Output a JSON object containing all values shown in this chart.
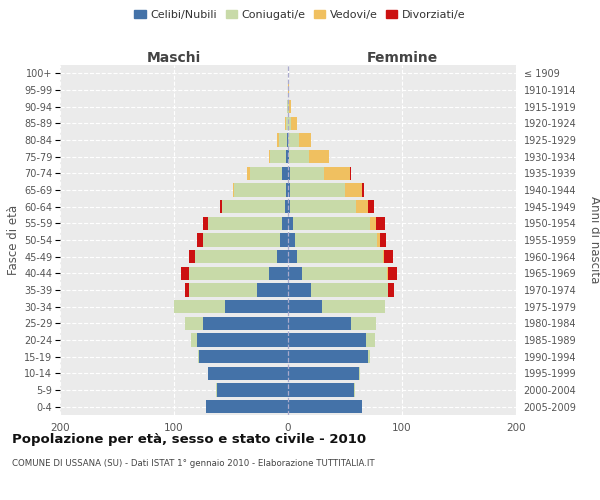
{
  "age_groups": [
    "0-4",
    "5-9",
    "10-14",
    "15-19",
    "20-24",
    "25-29",
    "30-34",
    "35-39",
    "40-44",
    "45-49",
    "50-54",
    "55-59",
    "60-64",
    "65-69",
    "70-74",
    "75-79",
    "80-84",
    "85-89",
    "90-94",
    "95-99",
    "100+"
  ],
  "birth_years": [
    "2005-2009",
    "2000-2004",
    "1995-1999",
    "1990-1994",
    "1985-1989",
    "1980-1984",
    "1975-1979",
    "1970-1974",
    "1965-1969",
    "1960-1964",
    "1955-1959",
    "1950-1954",
    "1945-1949",
    "1940-1944",
    "1935-1939",
    "1930-1934",
    "1925-1929",
    "1920-1924",
    "1915-1919",
    "1910-1914",
    "≤ 1909"
  ],
  "males": {
    "celibi": [
      72,
      62,
      70,
      78,
      80,
      75,
      55,
      27,
      17,
      10,
      7,
      5,
      3,
      2,
      5,
      2,
      1,
      0,
      0,
      0,
      0
    ],
    "coniugati": [
      0,
      1,
      0,
      1,
      5,
      15,
      45,
      60,
      70,
      72,
      68,
      65,
      55,
      45,
      28,
      14,
      7,
      2,
      1,
      0,
      0
    ],
    "vedovi": [
      0,
      0,
      0,
      0,
      0,
      0,
      0,
      0,
      0,
      0,
      0,
      0,
      0,
      1,
      3,
      1,
      2,
      1,
      0,
      0,
      0
    ],
    "divorziati": [
      0,
      0,
      0,
      0,
      0,
      0,
      0,
      3,
      7,
      5,
      5,
      5,
      2,
      0,
      0,
      0,
      0,
      0,
      0,
      0,
      0
    ]
  },
  "females": {
    "nubili": [
      65,
      58,
      62,
      70,
      68,
      55,
      30,
      20,
      12,
      8,
      6,
      4,
      2,
      2,
      2,
      1,
      0,
      0,
      0,
      0,
      0
    ],
    "coniugate": [
      0,
      1,
      1,
      2,
      8,
      22,
      55,
      68,
      75,
      75,
      72,
      68,
      58,
      48,
      30,
      17,
      10,
      3,
      1,
      0,
      0
    ],
    "vedove": [
      0,
      0,
      0,
      0,
      0,
      0,
      0,
      0,
      1,
      1,
      3,
      5,
      10,
      15,
      22,
      18,
      10,
      5,
      2,
      1,
      0
    ],
    "divorziate": [
      0,
      0,
      0,
      0,
      0,
      0,
      0,
      5,
      8,
      8,
      5,
      8,
      5,
      2,
      1,
      0,
      0,
      0,
      0,
      0,
      0
    ]
  },
  "colors": {
    "celibi": "#4472a8",
    "coniugati": "#c8daa8",
    "vedovi": "#f0c060",
    "divorziati": "#cc1111"
  },
  "xlim": 200,
  "title": "Popolazione per età, sesso e stato civile - 2010",
  "subtitle": "COMUNE DI USSANA (SU) - Dati ISTAT 1° gennaio 2010 - Elaborazione TUTTITALIA.IT",
  "ylabel_left": "Fasce di età",
  "ylabel_right": "Anni di nascita",
  "xlabel_left": "Maschi",
  "xlabel_right": "Femmine",
  "legend_labels": [
    "Celibi/Nubili",
    "Coniugati/e",
    "Vedovi/e",
    "Divorziati/e"
  ],
  "background_color": "#ffffff",
  "plot_bg_color": "#ebebeb"
}
